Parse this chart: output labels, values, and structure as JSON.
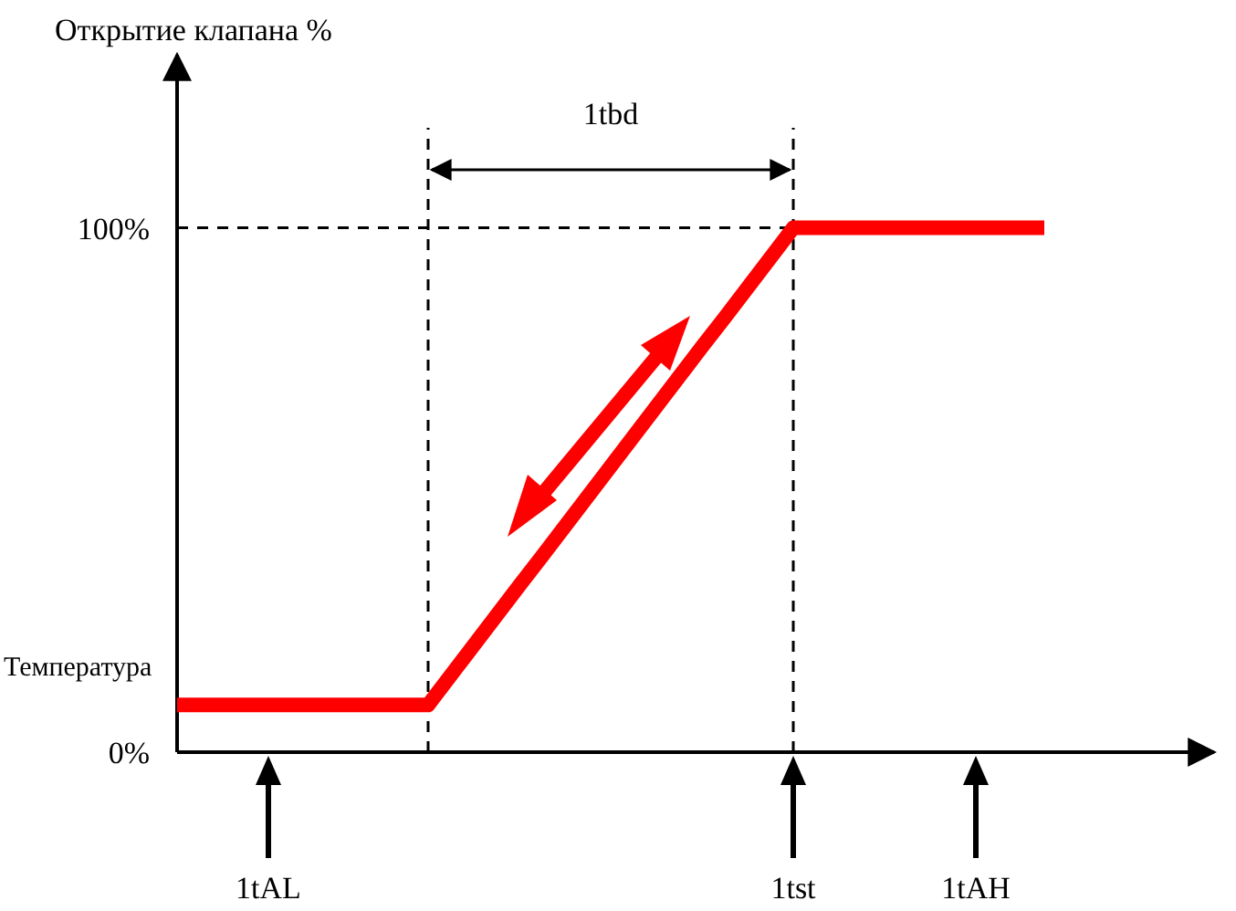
{
  "chart_data": {
    "type": "line",
    "ylabel": "Открытие клапана %",
    "xlabel": "Температура",
    "categories": [
      null,
      null,
      null,
      null,
      "1tAL",
      null,
      null,
      null,
      null,
      null,
      null,
      null,
      null,
      null,
      null,
      null,
      null,
      null,
      null,
      null,
      null,
      null,
      null,
      null,
      null,
      null,
      null,
      "1tst",
      null,
      null,
      null,
      null,
      null,
      null,
      null,
      "1tAH",
      null,
      null,
      null
    ],
    "series": [
      {
        "color": "#ff0000",
        "values": [
          9,
          9,
          9,
          9,
          9,
          9,
          9,
          9,
          9,
          9,
          9,
          9,
          14.7,
          20.4,
          26.1,
          31.8,
          37.4,
          43.1,
          48.8,
          54.5,
          60.2,
          65.9,
          71.6,
          77.3,
          82.9,
          88.6,
          94.3,
          100,
          100,
          100,
          100,
          100,
          100,
          100,
          100,
          100,
          100,
          100,
          100
        ]
      }
    ],
    "ylim": [
      0,
      133
    ],
    "yticks": [
      {
        "value": 0,
        "label": "0%"
      },
      {
        "value": 100,
        "label": "100%"
      }
    ],
    "ref_lines": [
      {
        "axis": "y",
        "value": 100,
        "label": null,
        "line_style": "dashed"
      }
    ],
    "annotations": [
      "1tbd"
    ],
    "line_style": "solid"
  }
}
